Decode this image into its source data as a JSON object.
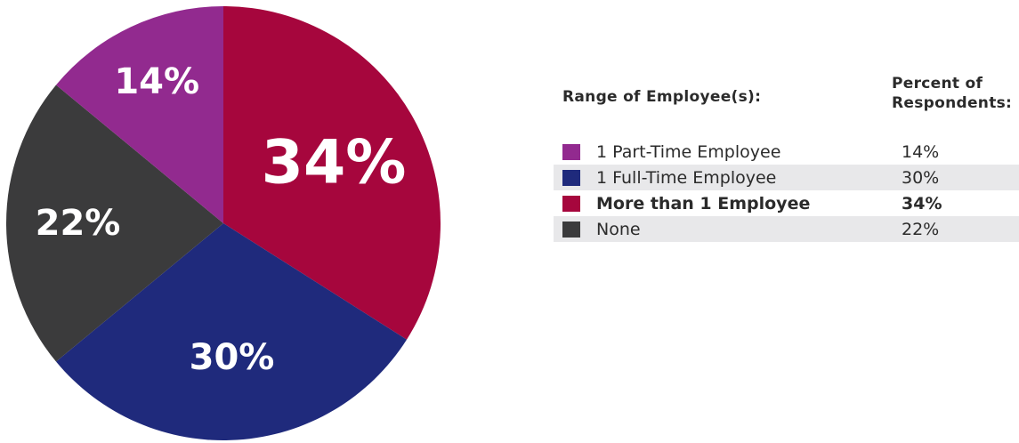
{
  "chart_data": {
    "type": "pie",
    "categories": [
      "1 Part-Time Employee",
      "1 Full-Time Employee",
      "More than 1 Employee",
      "None"
    ],
    "values": [
      14,
      30,
      34,
      22
    ],
    "value_labels": [
      "14%",
      "30%",
      "34%",
      "22%"
    ],
    "colors": [
      "#922a8f",
      "#1f2a7c",
      "#a6063d",
      "#3b3b3c"
    ],
    "slice_order_clockwise_from_top": [
      "More than 1 Employee",
      "1 Full-Time Employee",
      "None",
      "1 Part-Time Employee"
    ],
    "legend_placement": "right"
  },
  "legend": {
    "header_range": "Range of Employee(s):",
    "header_percent_line1": "Percent of",
    "header_percent_line2": "Respondents:",
    "rows": [
      {
        "label": "1 Part-Time Employee",
        "value": "14%",
        "color": "#922a8f",
        "bold": false,
        "shaded": false
      },
      {
        "label": "1 Full-Time Employee",
        "value": "30%",
        "color": "#1f2a7c",
        "bold": false,
        "shaded": true
      },
      {
        "label": "More than 1 Employee",
        "value": "34%",
        "color": "#a6063d",
        "bold": true,
        "shaded": false
      },
      {
        "label": "None",
        "value": "22%",
        "color": "#3b3b3c",
        "bold": false,
        "shaded": true
      }
    ]
  }
}
